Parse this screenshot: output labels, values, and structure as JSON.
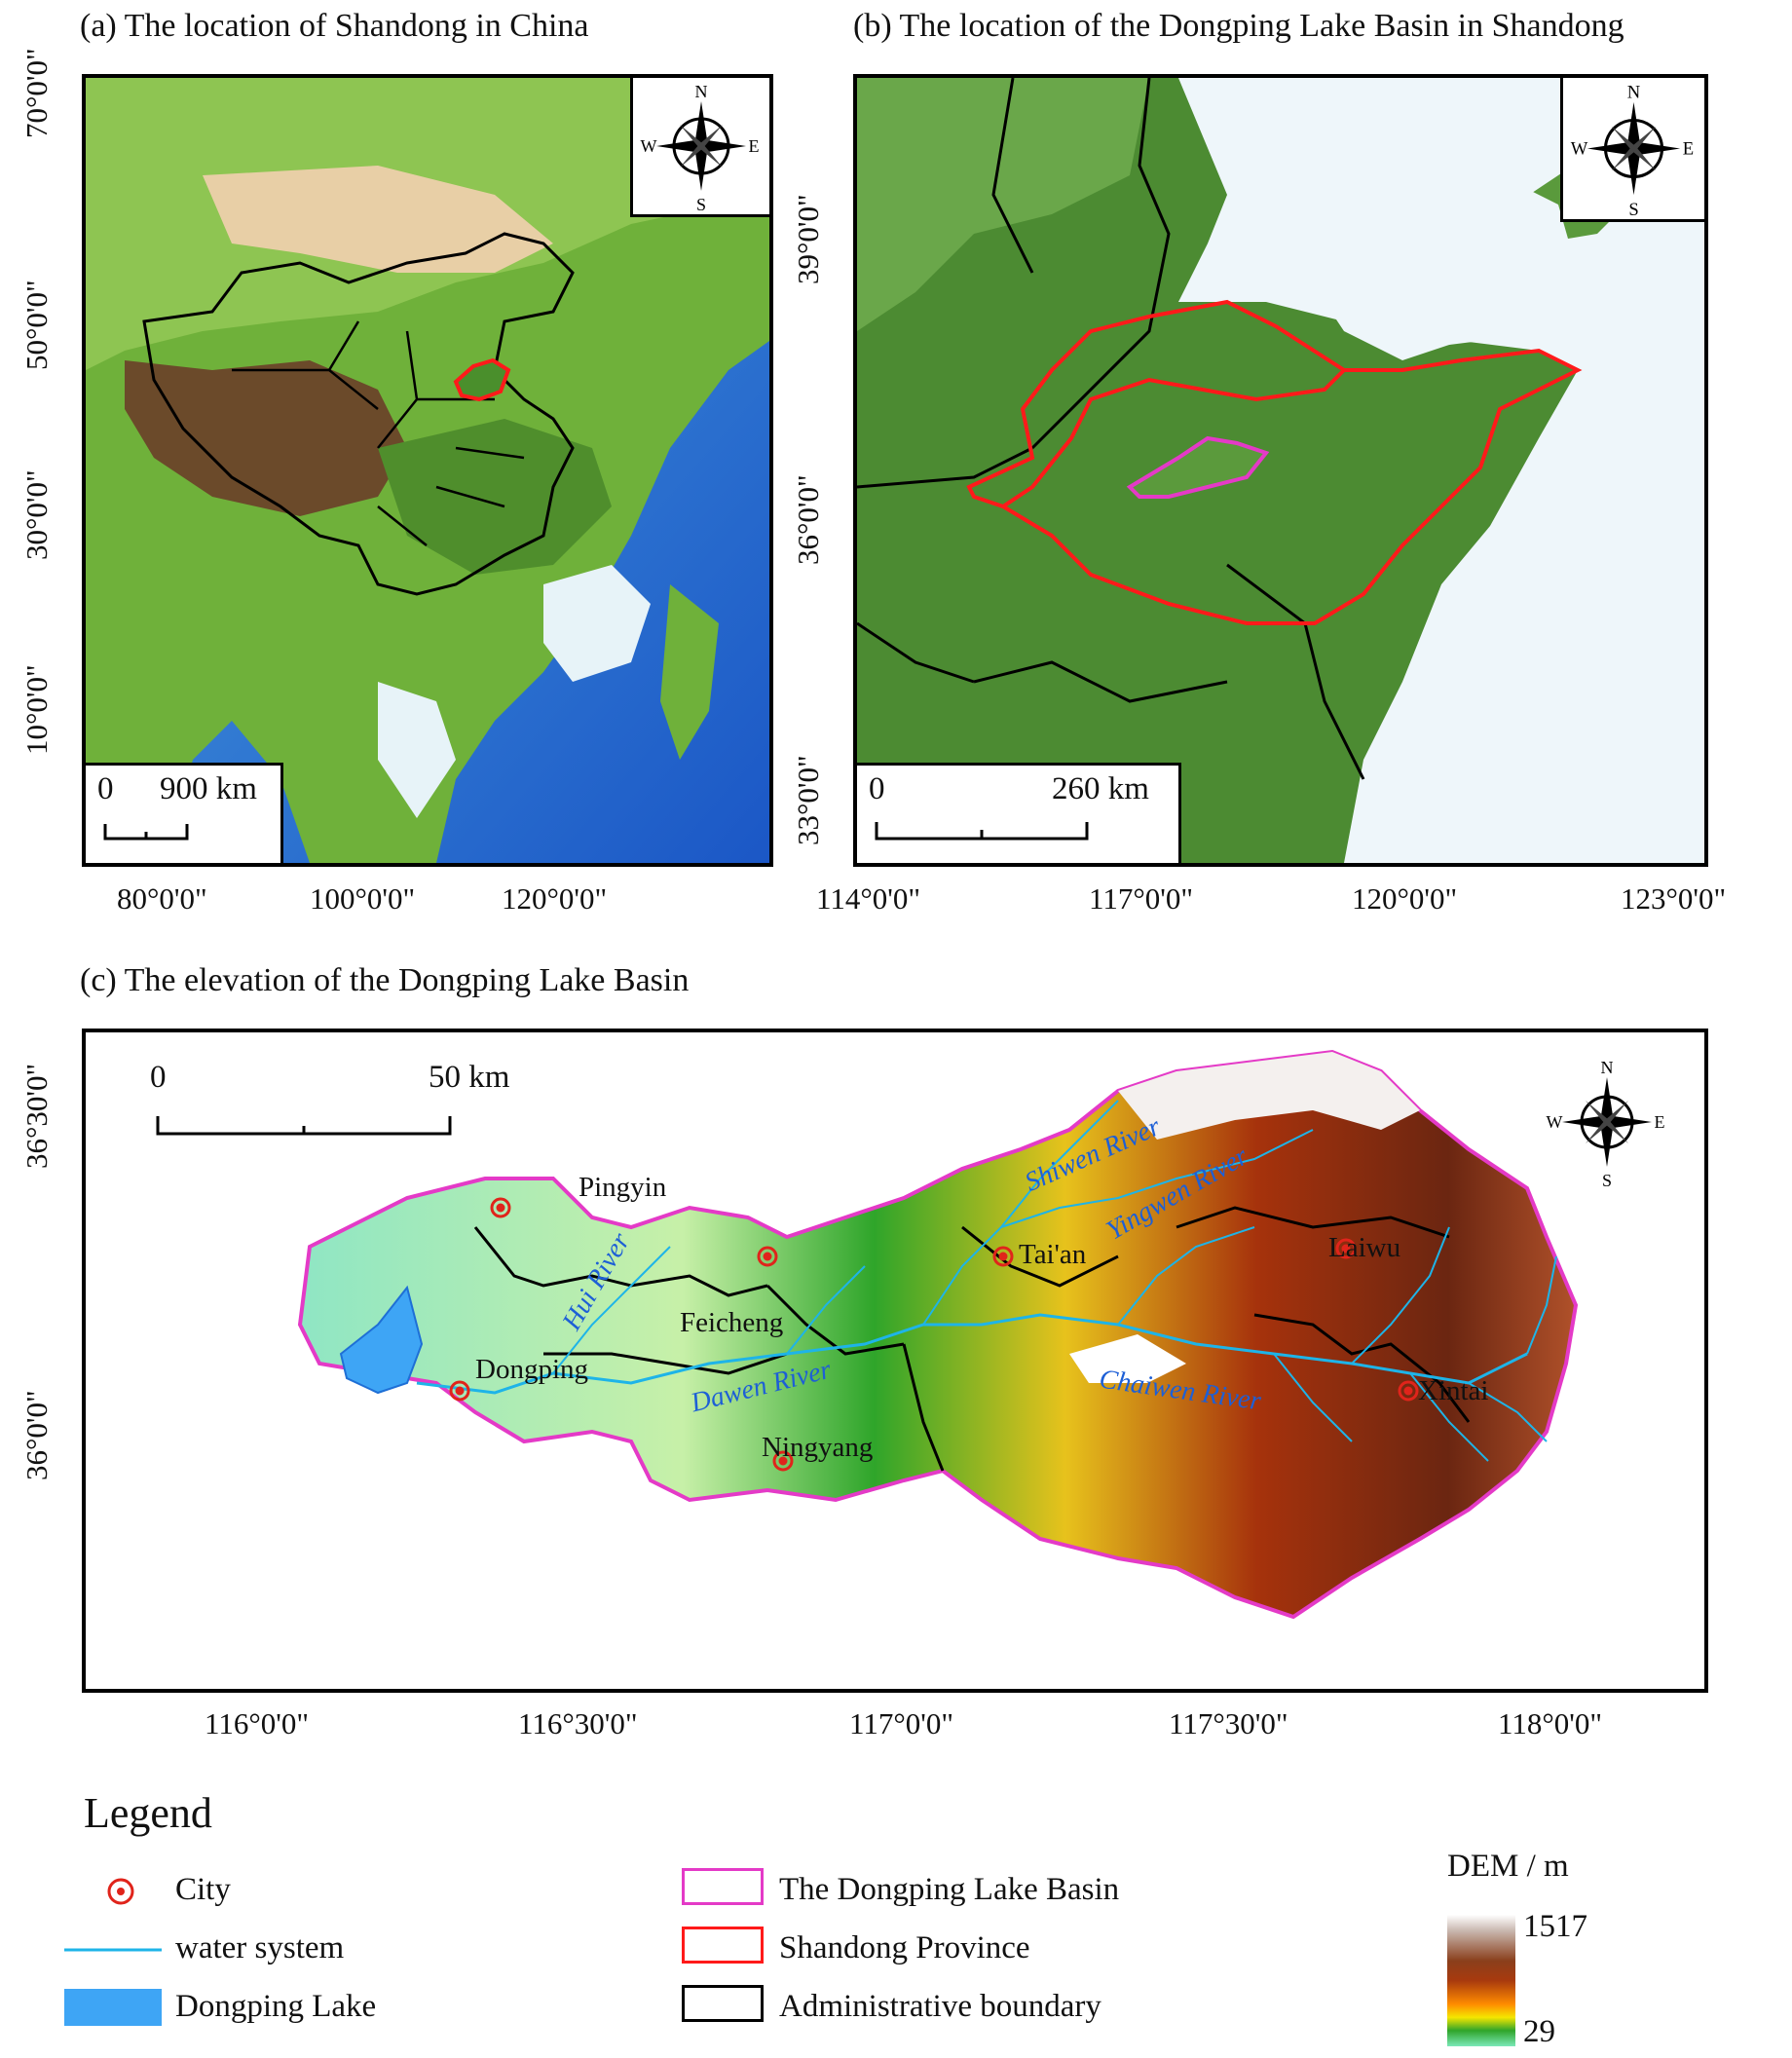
{
  "panel_a": {
    "title": "(a) The location of Shandong in China",
    "x_ticks": [
      "80°0'0\"",
      "100°0'0\"",
      "120°0'0\""
    ],
    "y_ticks": [
      "70°0'0\"",
      "50°0'0\"",
      "30°0'0\"",
      "10°0'0\""
    ],
    "scale": {
      "start": "0",
      "end": "900 km"
    },
    "compass": {
      "n": "N",
      "s": "S",
      "e": "E",
      "w": "W"
    }
  },
  "panel_b": {
    "title": "(b) The location of the Dongping Lake Basin in Shandong",
    "x_ticks": [
      "114°0'0\"",
      "117°0'0\"",
      "120°0'0\"",
      "123°0'0\""
    ],
    "y_ticks": [
      "39°0'0\"",
      "36°0'0\"",
      "33°0'0\""
    ],
    "scale": {
      "start": "0",
      "end": "260 km"
    },
    "compass": {
      "n": "N",
      "s": "S",
      "e": "E",
      "w": "W"
    }
  },
  "panel_c": {
    "title": "(c) The elevation of the Dongping Lake Basin",
    "x_ticks": [
      "116°0'0\"",
      "116°30'0\"",
      "117°0'0\"",
      "117°30'0\"",
      "118°0'0\""
    ],
    "y_ticks": [
      "36°30'0\"",
      "36°0'0\""
    ],
    "scale": {
      "start": "0",
      "end": "50 km"
    },
    "compass": {
      "n": "N",
      "s": "S",
      "e": "E",
      "w": "W"
    },
    "cities": [
      "Pingyin",
      "Tai'an",
      "Laiwu",
      "Feicheng",
      "Dongping",
      "Ningyang",
      "Xintai"
    ],
    "rivers": [
      "Shiwen River",
      "Yingwen River",
      "Hui River",
      "Dawen River",
      "Chaiwen River"
    ]
  },
  "legend": {
    "title": "Legend",
    "items": [
      {
        "label": "City"
      },
      {
        "label": "water system"
      },
      {
        "label": "Dongping Lake"
      },
      {
        "label": "The Dongping Lake Basin"
      },
      {
        "label": "Shandong Province"
      },
      {
        "label": "Administrative boundary"
      }
    ],
    "dem": {
      "title": "DEM / m",
      "max": "1517",
      "min": "29"
    }
  },
  "colors": {
    "basin": "#e43ac7",
    "shandong": "#ff1a1a",
    "admin": "#000000",
    "water": "#1eb4e8",
    "lake": "#3ea5f5",
    "city": "#e0241b"
  }
}
